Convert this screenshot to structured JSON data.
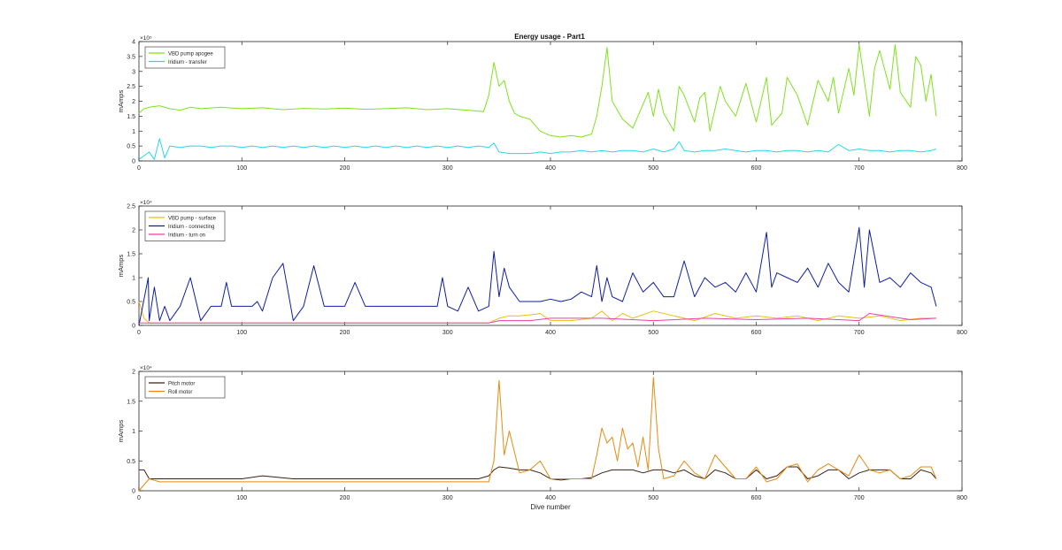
{
  "figure": {
    "title": "Energy usage - Part1"
  },
  "chart_data": [
    {
      "type": "line",
      "title": "Energy usage - Part1",
      "xlabel": "",
      "ylabel": "mAmps",
      "xlim": [
        0,
        800
      ],
      "ylim": [
        0,
        4
      ],
      "y_exponent_label": "×10⁵",
      "x_ticks": [
        0,
        100,
        200,
        300,
        400,
        500,
        600,
        700,
        800
      ],
      "y_ticks": [
        0,
        0.5,
        1,
        1.5,
        2,
        2.5,
        3,
        3.5,
        4
      ],
      "legend_position": "top-left",
      "series": [
        {
          "name": "VBD pump apogee",
          "color": "#7ee21f",
          "x": [
            0,
            5,
            10,
            20,
            30,
            40,
            50,
            60,
            80,
            100,
            120,
            140,
            160,
            180,
            200,
            220,
            240,
            260,
            280,
            300,
            320,
            335,
            340,
            345,
            350,
            355,
            360,
            365,
            370,
            380,
            390,
            400,
            410,
            420,
            430,
            440,
            445,
            450,
            455,
            460,
            470,
            480,
            490,
            495,
            500,
            505,
            510,
            520,
            525,
            530,
            540,
            545,
            550,
            555,
            565,
            570,
            580,
            590,
            600,
            610,
            615,
            625,
            630,
            640,
            650,
            660,
            670,
            675,
            680,
            690,
            695,
            700,
            710,
            715,
            720,
            730,
            735,
            740,
            750,
            755,
            760,
            765,
            770,
            775
          ],
          "values": [
            1.6,
            1.75,
            1.8,
            1.85,
            1.75,
            1.7,
            1.8,
            1.75,
            1.8,
            1.75,
            1.78,
            1.72,
            1.76,
            1.74,
            1.77,
            1.73,
            1.75,
            1.78,
            1.72,
            1.75,
            1.7,
            1.65,
            2.2,
            3.3,
            2.5,
            2.7,
            2.0,
            1.6,
            1.5,
            1.4,
            1.0,
            0.85,
            0.8,
            0.85,
            0.8,
            0.9,
            1.5,
            2.5,
            3.8,
            2.0,
            1.4,
            1.1,
            1.9,
            2.3,
            1.5,
            2.4,
            1.6,
            1.0,
            2.5,
            2.2,
            1.3,
            2.1,
            2.3,
            1.0,
            2.5,
            2.0,
            1.5,
            2.6,
            1.3,
            2.8,
            1.2,
            1.6,
            2.8,
            2.2,
            1.2,
            2.7,
            2.0,
            2.8,
            1.6,
            3.1,
            2.2,
            3.9,
            1.5,
            3.1,
            3.7,
            2.4,
            3.9,
            2.3,
            1.8,
            3.5,
            3.2,
            2.0,
            2.9,
            1.5
          ]
        },
        {
          "name": "Iridium - transfer",
          "color": "#25d9e6",
          "x": [
            0,
            10,
            15,
            20,
            25,
            30,
            40,
            50,
            60,
            70,
            80,
            90,
            100,
            110,
            120,
            130,
            140,
            150,
            160,
            170,
            180,
            190,
            200,
            210,
            220,
            230,
            240,
            250,
            260,
            270,
            280,
            290,
            300,
            310,
            320,
            330,
            340,
            345,
            350,
            360,
            370,
            380,
            390,
            400,
            410,
            420,
            430,
            440,
            450,
            460,
            470,
            480,
            490,
            500,
            510,
            520,
            525,
            530,
            540,
            550,
            560,
            570,
            580,
            590,
            600,
            610,
            620,
            630,
            640,
            650,
            660,
            670,
            680,
            690,
            700,
            710,
            720,
            730,
            740,
            750,
            760,
            770,
            775
          ],
          "values": [
            0.05,
            0.3,
            0.05,
            0.75,
            0.1,
            0.5,
            0.45,
            0.5,
            0.5,
            0.45,
            0.5,
            0.5,
            0.45,
            0.5,
            0.45,
            0.5,
            0.45,
            0.5,
            0.45,
            0.5,
            0.45,
            0.5,
            0.45,
            0.5,
            0.45,
            0.5,
            0.45,
            0.5,
            0.45,
            0.5,
            0.45,
            0.5,
            0.45,
            0.5,
            0.45,
            0.5,
            0.45,
            0.6,
            0.3,
            0.25,
            0.25,
            0.25,
            0.3,
            0.25,
            0.3,
            0.3,
            0.35,
            0.3,
            0.35,
            0.3,
            0.35,
            0.35,
            0.3,
            0.4,
            0.3,
            0.4,
            0.65,
            0.35,
            0.3,
            0.35,
            0.35,
            0.4,
            0.35,
            0.3,
            0.35,
            0.35,
            0.3,
            0.35,
            0.35,
            0.3,
            0.35,
            0.3,
            0.55,
            0.35,
            0.4,
            0.35,
            0.35,
            0.3,
            0.35,
            0.35,
            0.3,
            0.35,
            0.4
          ]
        }
      ]
    },
    {
      "type": "line",
      "title": "",
      "xlabel": "",
      "ylabel": "mAmps",
      "xlim": [
        0,
        800
      ],
      "ylim": [
        0,
        2.5
      ],
      "y_exponent_label": "×10⁴",
      "x_ticks": [
        0,
        100,
        200,
        300,
        400,
        500,
        600,
        700,
        800
      ],
      "y_ticks": [
        0,
        0.5,
        1,
        1.5,
        2,
        2.5
      ],
      "legend_position": "top-left",
      "series": [
        {
          "name": "VBD pump - surface",
          "color": "#e6c018",
          "x": [
            0,
            5,
            10,
            50,
            100,
            150,
            200,
            250,
            300,
            340,
            350,
            360,
            370,
            380,
            390,
            400,
            420,
            440,
            450,
            460,
            470,
            480,
            500,
            520,
            540,
            560,
            580,
            600,
            620,
            640,
            660,
            680,
            700,
            720,
            740,
            760,
            775
          ],
          "values": [
            0.5,
            0.15,
            0.05,
            0.05,
            0.05,
            0.05,
            0.05,
            0.05,
            0.05,
            0.05,
            0.15,
            0.2,
            0.2,
            0.22,
            0.25,
            0.1,
            0.1,
            0.15,
            0.3,
            0.1,
            0.25,
            0.15,
            0.3,
            0.2,
            0.1,
            0.25,
            0.15,
            0.2,
            0.15,
            0.2,
            0.1,
            0.2,
            0.15,
            0.2,
            0.1,
            0.15,
            0.15
          ]
        },
        {
          "name": "Iridium - connecting",
          "color": "#0f1ea0",
          "x": [
            0,
            9,
            10,
            15,
            20,
            25,
            30,
            40,
            50,
            60,
            70,
            80,
            85,
            90,
            100,
            110,
            115,
            120,
            130,
            140,
            150,
            160,
            170,
            180,
            190,
            200,
            210,
            220,
            230,
            240,
            250,
            260,
            270,
            280,
            290,
            295,
            300,
            310,
            320,
            330,
            340,
            345,
            350,
            355,
            360,
            370,
            380,
            390,
            400,
            410,
            420,
            430,
            440,
            445,
            450,
            455,
            460,
            470,
            480,
            490,
            500,
            510,
            520,
            530,
            540,
            550,
            560,
            570,
            580,
            590,
            600,
            610,
            615,
            620,
            630,
            640,
            650,
            660,
            670,
            680,
            690,
            700,
            705,
            710,
            720,
            730,
            740,
            750,
            760,
            770,
            775
          ],
          "values": [
            0,
            1.0,
            0.1,
            0.8,
            0.1,
            0.4,
            0.1,
            0.4,
            1.0,
            0.1,
            0.4,
            0.4,
            0.9,
            0.4,
            0.4,
            0.4,
            0.5,
            0.3,
            1.0,
            1.3,
            0.1,
            0.4,
            1.25,
            0.4,
            0.4,
            0.4,
            0.9,
            0.4,
            0.4,
            0.4,
            0.4,
            0.4,
            0.4,
            0.4,
            0.4,
            1.0,
            0.4,
            0.3,
            0.8,
            0.3,
            0.4,
            1.55,
            0.6,
            1.2,
            0.8,
            0.5,
            0.5,
            0.5,
            0.55,
            0.5,
            0.55,
            0.7,
            0.6,
            1.25,
            0.5,
            1.0,
            0.6,
            0.5,
            1.1,
            0.7,
            0.9,
            0.6,
            0.6,
            1.35,
            0.6,
            1.0,
            0.8,
            0.9,
            0.7,
            1.1,
            0.7,
            1.95,
            0.8,
            1.1,
            1.0,
            0.9,
            1.2,
            0.8,
            1.3,
            0.9,
            0.7,
            2.05,
            0.8,
            2.0,
            0.9,
            1.0,
            0.8,
            1.1,
            0.9,
            0.8,
            0.4
          ]
        },
        {
          "name": "Iridium - turn on",
          "color": "#ea3fa6",
          "x": [
            0,
            50,
            100,
            150,
            200,
            250,
            300,
            340,
            350,
            380,
            400,
            450,
            500,
            550,
            600,
            650,
            700,
            710,
            750,
            775
          ],
          "values": [
            0.05,
            0.05,
            0.05,
            0.05,
            0.05,
            0.05,
            0.05,
            0.05,
            0.1,
            0.1,
            0.15,
            0.15,
            0.1,
            0.15,
            0.12,
            0.15,
            0.1,
            0.25,
            0.12,
            0.15
          ]
        }
      ]
    },
    {
      "type": "line",
      "title": "",
      "xlabel": "Dive number",
      "ylabel": "mAmps",
      "xlim": [
        0,
        800
      ],
      "ylim": [
        0,
        2
      ],
      "y_exponent_label": "×10⁴",
      "x_ticks": [
        0,
        100,
        200,
        300,
        400,
        500,
        600,
        700,
        800
      ],
      "y_ticks": [
        0,
        0.5,
        1,
        1.5,
        2
      ],
      "legend_position": "top-left",
      "series": [
        {
          "name": "Pitch motor",
          "color": "#3a2212",
          "x": [
            0,
            5,
            10,
            50,
            100,
            120,
            150,
            200,
            250,
            300,
            330,
            340,
            345,
            350,
            360,
            370,
            380,
            390,
            400,
            410,
            420,
            430,
            440,
            450,
            460,
            470,
            480,
            490,
            500,
            510,
            520,
            530,
            540,
            550,
            560,
            570,
            580,
            590,
            600,
            610,
            620,
            630,
            640,
            650,
            660,
            670,
            680,
            690,
            700,
            710,
            720,
            730,
            740,
            750,
            760,
            770,
            775
          ],
          "values": [
            0.35,
            0.35,
            0.2,
            0.2,
            0.2,
            0.25,
            0.2,
            0.2,
            0.2,
            0.2,
            0.2,
            0.25,
            0.35,
            0.4,
            0.38,
            0.35,
            0.35,
            0.3,
            0.2,
            0.18,
            0.2,
            0.2,
            0.22,
            0.3,
            0.35,
            0.35,
            0.35,
            0.3,
            0.35,
            0.35,
            0.3,
            0.35,
            0.25,
            0.2,
            0.35,
            0.3,
            0.2,
            0.2,
            0.35,
            0.2,
            0.25,
            0.4,
            0.4,
            0.2,
            0.25,
            0.35,
            0.35,
            0.2,
            0.3,
            0.35,
            0.35,
            0.35,
            0.2,
            0.2,
            0.35,
            0.3,
            0.2
          ]
        },
        {
          "name": "Roll motor",
          "color": "#e68a12",
          "x": [
            0,
            10,
            20,
            50,
            100,
            150,
            200,
            250,
            300,
            340,
            345,
            350,
            355,
            360,
            370,
            380,
            390,
            400,
            420,
            440,
            445,
            450,
            455,
            460,
            465,
            470,
            475,
            480,
            485,
            490,
            495,
            500,
            505,
            510,
            520,
            530,
            540,
            550,
            560,
            570,
            580,
            590,
            600,
            610,
            620,
            630,
            640,
            650,
            660,
            670,
            680,
            690,
            700,
            710,
            720,
            730,
            740,
            750,
            760,
            770,
            775
          ],
          "values": [
            0,
            0.2,
            0.15,
            0.15,
            0.15,
            0.15,
            0.15,
            0.15,
            0.15,
            0.15,
            0.5,
            1.85,
            0.6,
            1.0,
            0.3,
            0.35,
            0.5,
            0.2,
            0.2,
            0.2,
            0.6,
            1.05,
            0.8,
            0.9,
            0.5,
            1.05,
            0.7,
            0.8,
            0.4,
            0.9,
            0.35,
            1.9,
            0.7,
            0.2,
            0.25,
            0.5,
            0.3,
            0.2,
            0.6,
            0.4,
            0.2,
            0.2,
            0.4,
            0.15,
            0.2,
            0.4,
            0.45,
            0.15,
            0.35,
            0.45,
            0.35,
            0.25,
            0.6,
            0.35,
            0.3,
            0.35,
            0.2,
            0.25,
            0.4,
            0.4,
            0.2
          ]
        }
      ]
    }
  ]
}
